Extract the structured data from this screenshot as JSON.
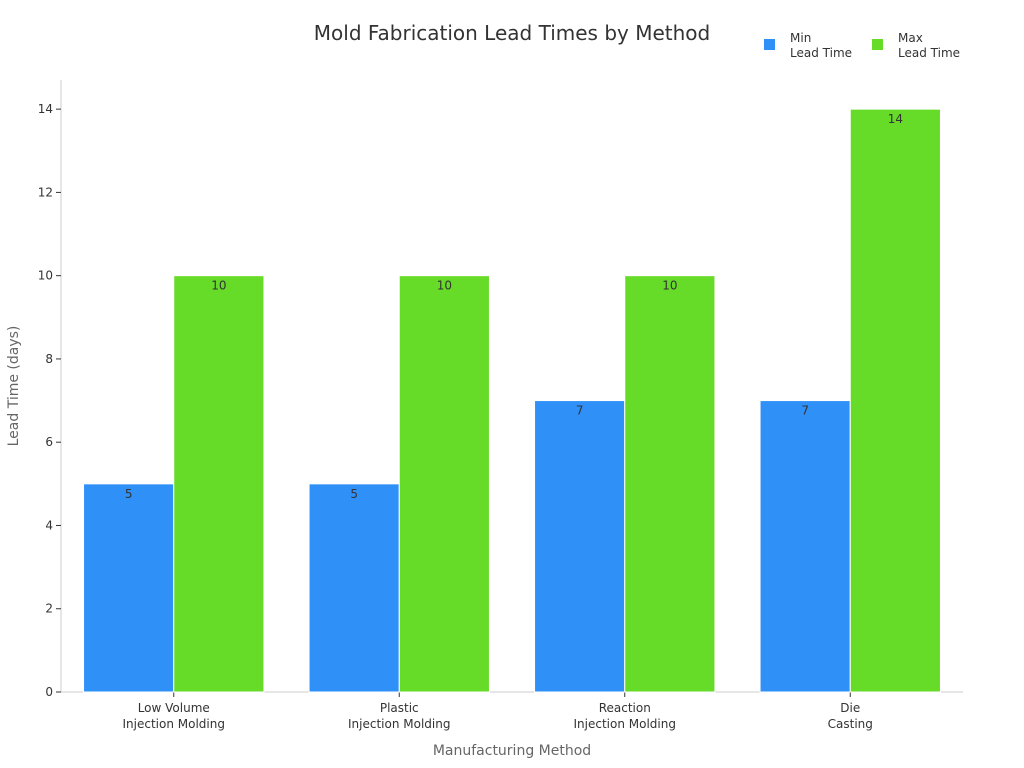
{
  "chart_data": {
    "type": "bar",
    "title": "Mold Fabrication Lead Times by Method",
    "xlabel": "Manufacturing Method",
    "ylabel": "Lead Time (days)",
    "categories": [
      [
        "Low Volume",
        "Injection Molding"
      ],
      [
        "Plastic",
        "Injection Molding"
      ],
      [
        "Reaction",
        "Injection Molding"
      ],
      [
        "Die",
        "Casting"
      ]
    ],
    "series": [
      {
        "name": [
          "Min",
          "Lead Time"
        ],
        "color": "#2f90f7",
        "values": [
          5,
          5,
          7,
          7
        ]
      },
      {
        "name": [
          "Max",
          "Lead Time"
        ],
        "color": "#66db28",
        "values": [
          10,
          10,
          10,
          14
        ]
      }
    ],
    "ylim": [
      0,
      14.7
    ],
    "yticks": [
      0,
      2,
      4,
      6,
      8,
      10,
      12,
      14
    ],
    "legend_position": "top-right",
    "grid": false
  }
}
